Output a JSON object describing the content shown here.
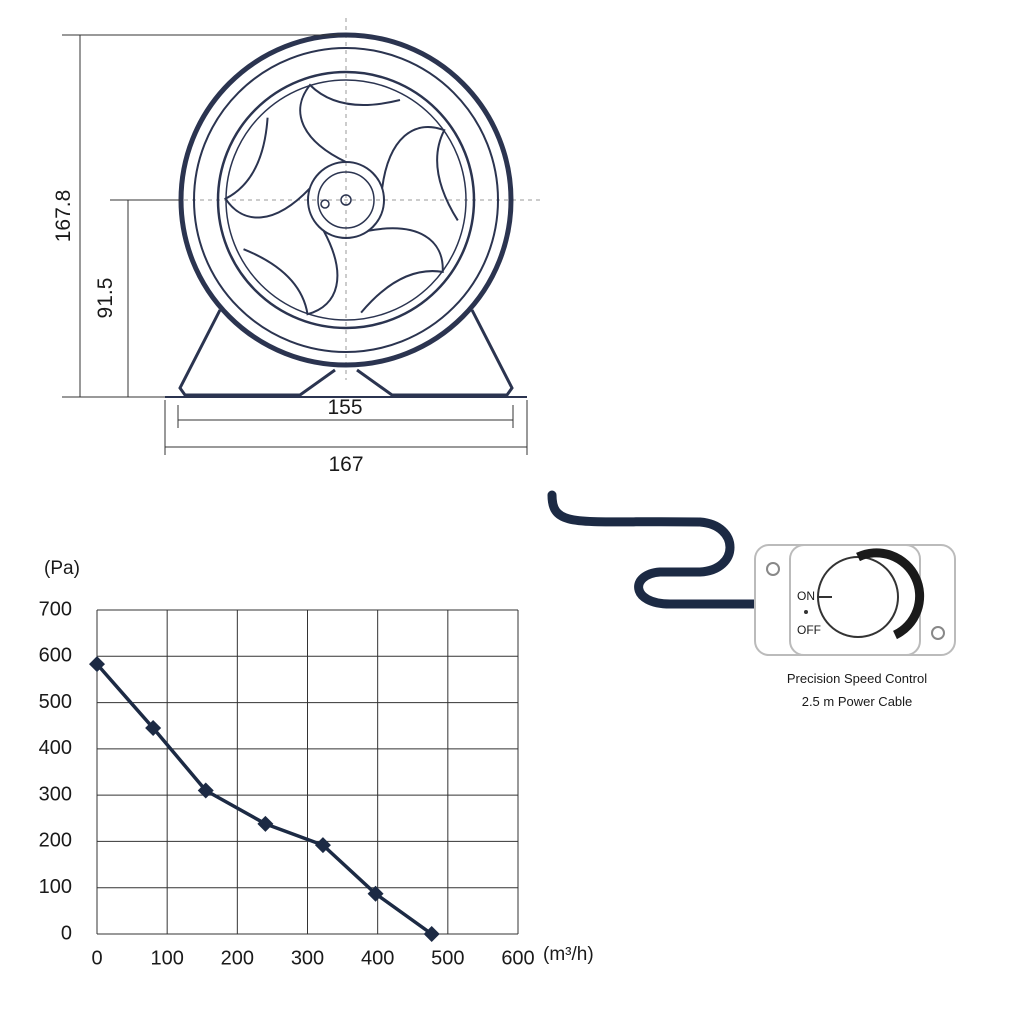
{
  "drawing": {
    "dimensions": {
      "height": "167.8",
      "axis_height": "91.5",
      "inner_width": "155",
      "outer_width": "167"
    }
  },
  "controller": {
    "on": "ON",
    "off": "OFF",
    "caption": [
      "Precision Speed Control",
      "2.5 m Power Cable"
    ]
  },
  "chart_data": {
    "type": "line",
    "y_label": "(Pa)",
    "x_label": "(m³/h)",
    "x": [
      0,
      80,
      155,
      240,
      322,
      397,
      477
    ],
    "values": [
      583,
      445,
      310,
      238,
      192,
      87,
      0
    ],
    "color": "#1c2a44",
    "xlim": [
      0,
      600
    ],
    "xticks": [
      0,
      100,
      200,
      300,
      400,
      500,
      600
    ],
    "ylim": [
      0,
      700
    ],
    "yticks": [
      0,
      100,
      200,
      300,
      400,
      500,
      600,
      700
    ],
    "grid": true,
    "markers": "diamond"
  }
}
